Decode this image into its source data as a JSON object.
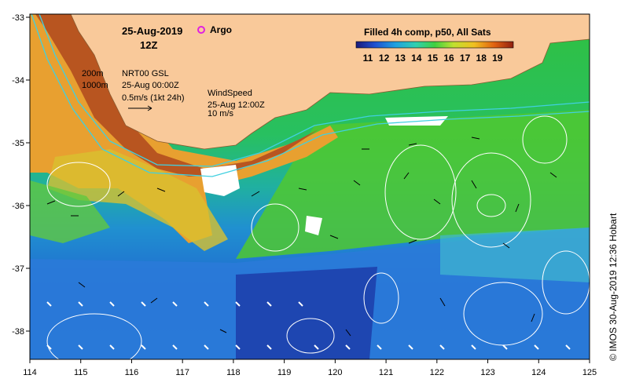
{
  "header": {
    "date": "25-Aug-2019",
    "time": "12Z",
    "argo_label": "Argo"
  },
  "colorbar": {
    "title": "Filled 4h comp, p50, All Sats",
    "ticks": [
      "11",
      "12",
      "13",
      "14",
      "15",
      "16",
      "17",
      "18",
      "19"
    ]
  },
  "annotations": {
    "depth_200": "200m",
    "depth_1000": "1000m",
    "current_product": "NRT00 GSL",
    "current_time": "25-Aug 00:00Z",
    "current_scale": "0.5m/s (1kt 24h)",
    "wind_title": "WindSpeed",
    "wind_time": "25-Aug 12:00Z",
    "wind_scale": "10 m/s"
  },
  "axes": {
    "y_ticks": [
      "-33",
      "-34",
      "-35",
      "-36",
      "-37",
      "-38"
    ],
    "x_ticks": [
      "114",
      "115",
      "116",
      "117",
      "118",
      "119",
      "120",
      "121",
      "122",
      "123",
      "124",
      "125"
    ]
  },
  "credit": "© IMOS 30-Aug-2019 12:36 Hobart",
  "colors": {
    "land": "#f9c99a",
    "argo": "#e020e0",
    "contour": "#ffffff",
    "isobath": "#40d0e0"
  }
}
